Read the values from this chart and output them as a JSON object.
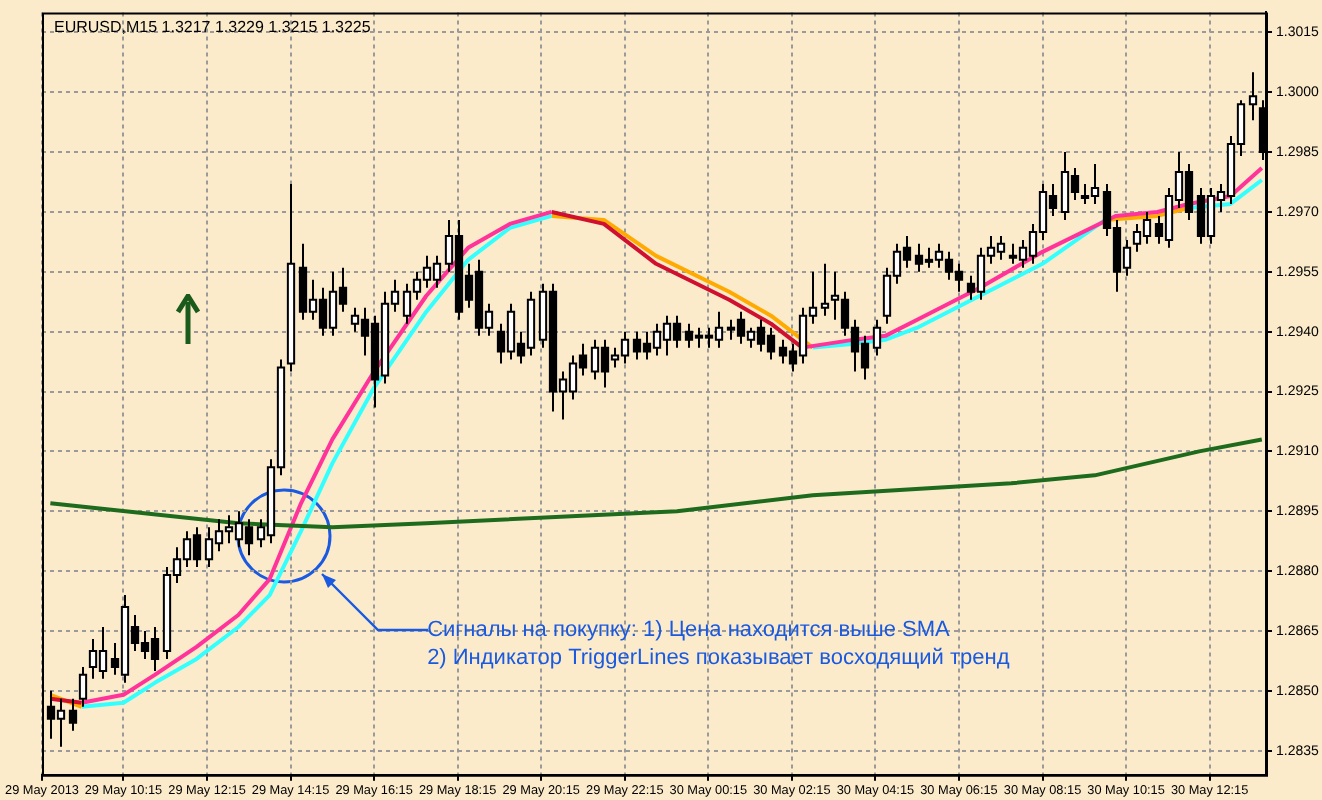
{
  "chart_data": {
    "type": "candlestick",
    "annotations": [
      "EURUSD,M15 1.3217 1.3229 1.3215 1.3225",
      "Сигналы на покупку: 1) Цена находится выше SMA\n2) Индикатор TriggerLines показывает восходящий тренд"
    ],
    "x": [
      "2013-05-29T08:30",
      "2013-05-29T08:45",
      "2013-05-29T09:00",
      "2013-05-29T09:15",
      "2013-05-29T09:30",
      "2013-05-29T09:45",
      "2013-05-29T10:00",
      "2013-05-29T10:15",
      "2013-05-29T10:30",
      "2013-05-29T10:45",
      "2013-05-29T11:00",
      "2013-05-29T11:15",
      "2013-05-29T11:30",
      "2013-05-29T11:45",
      "2013-05-29T12:00",
      "2013-05-29T12:15",
      "2013-05-29T12:30",
      "2013-05-29T12:45",
      "2013-05-29T13:00",
      "2013-05-29T13:15",
      "2013-05-29T13:30",
      "2013-05-29T13:45",
      "2013-05-29T14:00",
      "2013-05-29T14:15",
      "2013-05-29T14:30",
      "2013-05-29T14:45",
      "2013-05-29T15:00",
      "2013-05-29T15:15",
      "2013-05-29T15:30",
      "2013-05-29T15:45",
      "2013-05-29T16:00",
      "2013-05-29T16:15",
      "2013-05-29T16:30",
      "2013-05-29T16:45",
      "2013-05-29T17:00",
      "2013-05-29T17:15",
      "2013-05-29T17:30",
      "2013-05-29T17:45",
      "2013-05-29T18:00",
      "2013-05-29T18:15",
      "2013-05-29T18:30",
      "2013-05-29T18:45",
      "2013-05-29T19:00",
      "2013-05-29T19:15",
      "2013-05-29T19:30",
      "2013-05-29T19:45",
      "2013-05-29T20:00",
      "2013-05-29T20:15",
      "2013-05-29T20:30",
      "2013-05-29T20:45",
      "2013-05-29T21:00",
      "2013-05-29T21:15",
      "2013-05-29T21:30",
      "2013-05-29T21:45",
      "2013-05-29T22:00",
      "2013-05-29T22:15",
      "2013-05-29T22:30",
      "2013-05-29T22:45",
      "2013-05-29T23:00",
      "2013-05-29T23:15",
      "2013-05-29T23:30",
      "2013-05-29T23:45",
      "2013-05-30T00:00",
      "2013-05-30T00:15",
      "2013-05-30T00:30",
      "2013-05-30T00:45",
      "2013-05-30T01:00",
      "2013-05-30T01:15",
      "2013-05-30T01:30",
      "2013-05-30T01:45",
      "2013-05-30T02:00",
      "2013-05-30T02:15",
      "2013-05-30T02:30",
      "2013-05-30T02:45",
      "2013-05-30T03:00",
      "2013-05-30T03:15",
      "2013-05-30T03:30",
      "2013-05-30T03:45",
      "2013-05-30T04:00",
      "2013-05-30T04:15",
      "2013-05-30T04:30",
      "2013-05-30T04:45",
      "2013-05-30T05:00",
      "2013-05-30T05:15",
      "2013-05-30T05:30",
      "2013-05-30T05:45",
      "2013-05-30T06:00",
      "2013-05-30T06:15",
      "2013-05-30T06:30",
      "2013-05-30T06:45",
      "2013-05-30T07:00",
      "2013-05-30T07:15",
      "2013-05-30T07:30",
      "2013-05-30T07:45",
      "2013-05-30T08:00",
      "2013-05-30T08:15",
      "2013-05-30T08:30",
      "2013-05-30T08:45",
      "2013-05-30T09:00",
      "2013-05-30T09:15",
      "2013-05-30T09:30",
      "2013-05-30T09:45",
      "2013-05-30T10:00",
      "2013-05-30T10:15",
      "2013-05-30T10:30",
      "2013-05-30T10:45",
      "2013-05-30T11:00",
      "2013-05-30T11:15",
      "2013-05-30T11:30",
      "2013-05-30T11:45",
      "2013-05-30T12:00",
      "2013-05-30T12:15",
      "2013-05-30T12:30",
      "2013-05-30T12:45",
      "2013-05-30T13:00",
      "2013-05-30T13:15",
      "2013-05-30T13:30"
    ],
    "ohlc": [
      [
        1.2846,
        1.285,
        1.2838,
        1.2843
      ],
      [
        1.2843,
        1.2848,
        1.2836,
        1.2845
      ],
      [
        1.2845,
        1.2848,
        1.284,
        1.2842
      ],
      [
        1.2848,
        1.2856,
        1.2846,
        1.2854
      ],
      [
        1.2856,
        1.2863,
        1.2853,
        1.286
      ],
      [
        1.2855,
        1.2866,
        1.2853,
        1.286
      ],
      [
        1.2858,
        1.2862,
        1.2854,
        1.2856
      ],
      [
        1.2854,
        1.2874,
        1.2852,
        1.2871
      ],
      [
        1.2866,
        1.2869,
        1.286,
        1.2862
      ],
      [
        1.2862,
        1.2865,
        1.2858,
        1.286
      ],
      [
        1.2863,
        1.2866,
        1.2855,
        1.2858
      ],
      [
        1.286,
        1.2881,
        1.2858,
        1.2879
      ],
      [
        1.2879,
        1.2886,
        1.2877,
        1.2883
      ],
      [
        1.2883,
        1.289,
        1.2881,
        1.2888
      ],
      [
        1.2889,
        1.2891,
        1.2881,
        1.2883
      ],
      [
        1.2883,
        1.2891,
        1.2881,
        1.2888
      ],
      [
        1.2887,
        1.2893,
        1.2885,
        1.289
      ],
      [
        1.289,
        1.2894,
        1.2887,
        1.2891
      ],
      [
        1.2888,
        1.2895,
        1.2886,
        1.2892
      ],
      [
        1.2891,
        1.2893,
        1.2884,
        1.2887
      ],
      [
        1.2888,
        1.2893,
        1.2886,
        1.2891
      ],
      [
        1.2889,
        1.2908,
        1.2887,
        1.2906
      ],
      [
        1.2906,
        1.2933,
        1.2904,
        1.2931
      ],
      [
        1.2932,
        1.2977,
        1.293,
        1.2957
      ],
      [
        1.2956,
        1.2962,
        1.2943,
        1.2945
      ],
      [
        1.2945,
        1.2953,
        1.2943,
        1.2948
      ],
      [
        1.2948,
        1.2951,
        1.2939,
        1.2941
      ],
      [
        1.2941,
        1.2955,
        1.2939,
        1.295
      ],
      [
        1.2951,
        1.2956,
        1.2945,
        1.2947
      ],
      [
        1.2942,
        1.2946,
        1.294,
        1.2944
      ],
      [
        1.2943,
        1.2946,
        1.2934,
        1.2939
      ],
      [
        1.2942,
        1.2944,
        1.2921,
        1.2928
      ],
      [
        1.2929,
        1.295,
        1.2927,
        1.2947
      ],
      [
        1.2947,
        1.2953,
        1.2945,
        1.295
      ],
      [
        1.2944,
        1.2952,
        1.2942,
        1.295
      ],
      [
        1.295,
        1.2955,
        1.2948,
        1.2953
      ],
      [
        1.2953,
        1.2959,
        1.2951,
        1.2956
      ],
      [
        1.2953,
        1.2959,
        1.2951,
        1.2957
      ],
      [
        1.2957,
        1.2968,
        1.2955,
        1.2964
      ],
      [
        1.2964,
        1.2968,
        1.2943,
        1.2945
      ],
      [
        1.2954,
        1.2957,
        1.2946,
        1.2948
      ],
      [
        1.2955,
        1.2958,
        1.2939,
        1.2941
      ],
      [
        1.2941,
        1.2947,
        1.2939,
        1.2945
      ],
      [
        1.294,
        1.2942,
        1.2932,
        1.2935
      ],
      [
        1.2935,
        1.2947,
        1.2933,
        1.2945
      ],
      [
        1.2937,
        1.294,
        1.2932,
        1.2934
      ],
      [
        1.2936,
        1.295,
        1.2934,
        1.2948
      ],
      [
        1.2938,
        1.2952,
        1.2936,
        1.295
      ],
      [
        1.295,
        1.2952,
        1.292,
        1.2925
      ],
      [
        1.2925,
        1.293,
        1.2918,
        1.2928
      ],
      [
        1.2925,
        1.2934,
        1.2923,
        1.2932
      ],
      [
        1.2934,
        1.2937,
        1.2929,
        1.2931
      ],
      [
        1.293,
        1.2938,
        1.2928,
        1.2936
      ],
      [
        1.2936,
        1.2938,
        1.2926,
        1.293
      ],
      [
        1.2933,
        1.2936,
        1.2931,
        1.2934
      ],
      [
        1.2934,
        1.294,
        1.2932,
        1.2938
      ],
      [
        1.2938,
        1.294,
        1.2933,
        1.2935
      ],
      [
        1.2937,
        1.294,
        1.2933,
        1.2935
      ],
      [
        1.2936,
        1.2942,
        1.2934,
        1.294
      ],
      [
        1.2938,
        1.2944,
        1.2934,
        1.2942
      ],
      [
        1.2942,
        1.2944,
        1.2936,
        1.2938
      ],
      [
        1.294,
        1.2942,
        1.2936,
        1.2938
      ],
      [
        1.2939,
        1.2941,
        1.2936,
        1.2939
      ],
      [
        1.2939,
        1.2941,
        1.2936,
        1.2939
      ],
      [
        1.2938,
        1.2945,
        1.2936,
        1.2941
      ],
      [
        1.2941,
        1.2943,
        1.2938,
        1.2941
      ],
      [
        1.2943,
        1.2945,
        1.2937,
        1.2939
      ],
      [
        1.2938,
        1.2941,
        1.2936,
        1.294
      ],
      [
        1.2941,
        1.2943,
        1.2935,
        1.2937
      ],
      [
        1.2939,
        1.2941,
        1.2933,
        1.2935
      ],
      [
        1.2936,
        1.2938,
        1.2932,
        1.2934
      ],
      [
        1.2935,
        1.2937,
        1.293,
        1.2932
      ],
      [
        1.2934,
        1.2946,
        1.2932,
        1.2944
      ],
      [
        1.2944,
        1.2955,
        1.2942,
        1.2946
      ],
      [
        1.2946,
        1.2957,
        1.2944,
        1.2947
      ],
      [
        1.2948,
        1.2955,
        1.2943,
        1.2949
      ],
      [
        1.2948,
        1.295,
        1.2939,
        1.2941
      ],
      [
        1.2941,
        1.2943,
        1.293,
        1.2935
      ],
      [
        1.2937,
        1.2939,
        1.2928,
        1.2931
      ],
      [
        1.2936,
        1.2943,
        1.2934,
        1.2941
      ],
      [
        1.2944,
        1.2956,
        1.2942,
        1.2954
      ],
      [
        1.2954,
        1.2962,
        1.2952,
        1.296
      ],
      [
        1.2961,
        1.2964,
        1.2956,
        1.2958
      ],
      [
        1.2959,
        1.2962,
        1.2955,
        1.2957
      ],
      [
        1.2958,
        1.2961,
        1.2956,
        1.2958
      ],
      [
        1.2958,
        1.2962,
        1.2956,
        1.296
      ],
      [
        1.2958,
        1.296,
        1.2953,
        1.2955
      ],
      [
        1.2955,
        1.2957,
        1.295,
        1.2953
      ],
      [
        1.2952,
        1.2954,
        1.2948,
        1.295
      ],
      [
        1.295,
        1.2961,
        1.2948,
        1.2959
      ],
      [
        1.2959,
        1.2964,
        1.2957,
        1.2961
      ],
      [
        1.296,
        1.2964,
        1.2958,
        1.2962
      ],
      [
        1.2959,
        1.2962,
        1.2957,
        1.2959
      ],
      [
        1.2958,
        1.2963,
        1.2956,
        1.2961
      ],
      [
        1.2959,
        1.2967,
        1.2957,
        1.2965
      ],
      [
        1.2965,
        1.2977,
        1.2963,
        1.2975
      ],
      [
        1.2974,
        1.2977,
        1.2969,
        1.2971
      ],
      [
        1.297,
        1.2985,
        1.2968,
        1.298
      ],
      [
        1.2979,
        1.2981,
        1.2973,
        1.2975
      ],
      [
        1.2974,
        1.2977,
        1.2972,
        1.2974
      ],
      [
        1.2974,
        1.2982,
        1.2972,
        1.2976
      ],
      [
        1.2975,
        1.2977,
        1.2964,
        1.2966
      ],
      [
        1.2966,
        1.2968,
        1.295,
        1.2955
      ],
      [
        1.2956,
        1.2963,
        1.2954,
        1.2961
      ],
      [
        1.2962,
        1.2967,
        1.296,
        1.2965
      ],
      [
        1.2964,
        1.297,
        1.2962,
        1.2968
      ],
      [
        1.2967,
        1.2969,
        1.2962,
        1.2964
      ],
      [
        1.2963,
        1.2976,
        1.2961,
        1.2974
      ],
      [
        1.2973,
        1.2985,
        1.2971,
        1.298
      ],
      [
        1.298,
        1.2982,
        1.2968,
        1.297
      ],
      [
        1.2974,
        1.2976,
        1.2962,
        1.2964
      ],
      [
        1.2964,
        1.2976,
        1.2962,
        1.2974
      ],
      [
        1.2973,
        1.2977,
        1.297,
        1.2975
      ],
      [
        1.2974,
        1.2989,
        1.2972,
        1.2987
      ],
      [
        1.2987,
        1.2998,
        1.2984,
        1.2997
      ],
      [
        1.2997,
        1.3005,
        1.2993,
        1.2999
      ],
      [
        1.2996,
        1.2998,
        1.2983,
        1.2985
      ]
    ],
    "series": [
      {
        "type": "line",
        "color": "#1e6b1e",
        "x": [
          "2013-05-29T08:30",
          "2013-05-29T13:00",
          "2013-05-29T15:15",
          "2013-05-29T17:30",
          "2013-05-29T23:30",
          "2013-05-30T02:45",
          "2013-05-30T07:30",
          "2013-05-30T09:30",
          "2013-05-30T12:00",
          "2013-05-30T13:30"
        ],
        "values": [
          1.2897,
          1.2892,
          1.2891,
          1.2892,
          1.2895,
          1.2899,
          1.2902,
          1.2904,
          1.291,
          1.2913
        ]
      },
      {
        "type": "line",
        "color": "#d01030",
        "x": [
          "2013-05-29T08:30",
          "2013-05-29T09:15"
        ],
        "values": [
          1.2848,
          1.2847
        ]
      },
      {
        "type": "line",
        "color": "#ff3399",
        "x": [
          "2013-05-29T09:15",
          "2013-05-29T10:15",
          "2013-05-29T11:00",
          "2013-05-29T12:00",
          "2013-05-29T13:00",
          "2013-05-29T13:45",
          "2013-05-29T14:30",
          "2013-05-29T15:15",
          "2013-05-29T16:15",
          "2013-05-29T17:30",
          "2013-05-29T18:30",
          "2013-05-29T19:30",
          "2013-05-29T20:30"
        ],
        "values": [
          1.2847,
          1.2849,
          1.2854,
          1.2861,
          1.2869,
          1.2878,
          1.2897,
          1.2913,
          1.293,
          1.2949,
          1.2961,
          1.2967,
          1.297
        ]
      },
      {
        "type": "line",
        "color": "#d01030",
        "x": [
          "2013-05-29T20:30",
          "2013-05-29T21:45",
          "2013-05-29T23:00",
          "2013-05-30T00:45",
          "2013-05-30T01:45",
          "2013-05-30T02:30"
        ],
        "values": [
          1.297,
          1.2967,
          1.2957,
          1.2948,
          1.2942,
          1.2936
        ]
      },
      {
        "type": "line",
        "color": "#ff3399",
        "x": [
          "2013-05-30T02:30",
          "2013-05-30T03:45",
          "2013-05-30T04:30",
          "2013-05-30T05:15",
          "2013-05-30T06:45",
          "2013-05-30T08:15",
          "2013-05-30T10:00",
          "2013-05-30T11:00",
          "2013-05-30T11:45",
          "2013-05-30T12:45",
          "2013-05-30T13:30"
        ],
        "values": [
          1.2936,
          1.2938,
          1.2939,
          1.2943,
          1.2951,
          1.296,
          1.2969,
          1.297,
          1.2972,
          1.2974,
          1.2981
        ]
      },
      {
        "type": "line",
        "color": "#ffaa00",
        "x": [
          "2013-05-29T08:30",
          "2013-05-29T09:15"
        ],
        "values": [
          1.2849,
          1.2846
        ]
      },
      {
        "type": "line",
        "color": "#33ffff",
        "x": [
          "2013-05-29T09:15",
          "2013-05-29T10:15",
          "2013-05-29T11:00",
          "2013-05-29T12:00",
          "2013-05-29T13:00",
          "2013-05-29T13:45",
          "2013-05-29T14:30",
          "2013-05-29T15:15",
          "2013-05-29T16:15",
          "2013-05-29T17:30",
          "2013-05-29T18:30",
          "2013-05-29T19:30",
          "2013-05-29T20:30"
        ],
        "values": [
          1.2846,
          1.2847,
          1.2852,
          1.2858,
          1.2866,
          1.2874,
          1.289,
          1.2907,
          1.2926,
          1.2945,
          1.2958,
          1.2966,
          1.2969
        ]
      },
      {
        "type": "line",
        "color": "#ffaa00",
        "x": [
          "2013-05-29T20:30",
          "2013-05-29T21:45",
          "2013-05-29T23:00",
          "2013-05-30T00:45",
          "2013-05-30T01:45",
          "2013-05-30T02:45"
        ],
        "values": [
          1.2969,
          1.2968,
          1.2959,
          1.295,
          1.2944,
          1.2936
        ]
      },
      {
        "type": "line",
        "color": "#33ffff",
        "x": [
          "2013-05-30T02:45",
          "2013-05-30T03:45",
          "2013-05-30T04:30",
          "2013-05-30T05:15",
          "2013-05-30T06:45",
          "2013-05-30T08:15",
          "2013-05-30T09:45"
        ],
        "values": [
          1.2936,
          1.2937,
          1.2938,
          1.2941,
          1.2949,
          1.2957,
          1.2968
        ]
      },
      {
        "type": "line",
        "color": "#ffaa00",
        "x": [
          "2013-05-30T09:45",
          "2013-05-30T11:00",
          "2013-05-30T11:45"
        ],
        "values": [
          1.2968,
          1.2969,
          1.2971
        ]
      },
      {
        "type": "line",
        "color": "#33ffff",
        "x": [
          "2013-05-30T11:45",
          "2013-05-30T12:45",
          "2013-05-30T13:30"
        ],
        "values": [
          1.2971,
          1.2972,
          1.2978
        ]
      }
    ],
    "xlim": [
      "2013-05-29T08:18",
      "2013-05-30T13:36"
    ],
    "xticks": [
      {
        "value": "2013-05-29T08:18",
        "label": "29 May 2013"
      },
      {
        "value": "2013-05-29T10:15",
        "label": "29 May 10:15"
      },
      {
        "value": "2013-05-29T12:15",
        "label": "29 May 12:15"
      },
      {
        "value": "2013-05-29T14:15",
        "label": "29 May 14:15"
      },
      {
        "value": "2013-05-29T16:15",
        "label": "29 May 16:15"
      },
      {
        "value": "2013-05-29T18:15",
        "label": "29 May 18:15"
      },
      {
        "value": "2013-05-29T20:15",
        "label": "29 May 20:15"
      },
      {
        "value": "2013-05-29T22:15",
        "label": "29 May 22:15"
      },
      {
        "value": "2013-05-30T00:15",
        "label": "30 May 00:15"
      },
      {
        "value": "2013-05-30T02:15",
        "label": "30 May 02:15"
      },
      {
        "value": "2013-05-30T04:15",
        "label": "30 May 04:15"
      },
      {
        "value": "2013-05-30T06:15",
        "label": "30 May 06:15"
      },
      {
        "value": "2013-05-30T08:15",
        "label": "30 May 08:15"
      },
      {
        "value": "2013-05-30T10:15",
        "label": "30 May 10:15"
      },
      {
        "value": "2013-05-30T12:15",
        "label": "30 May 12:15"
      }
    ],
    "ylim": [
      1.2829,
      1.302
    ],
    "yticks": [
      1.2835,
      {
        "value": 1.285,
        "label": "1.2850"
      },
      1.2865,
      {
        "value": 1.288,
        "label": "1.2880"
      },
      1.2895,
      {
        "value": 1.291,
        "label": "1.2910"
      },
      1.2925,
      {
        "value": 1.294,
        "label": "1.2940"
      },
      1.2955,
      {
        "value": 1.297,
        "label": "1.2970"
      },
      1.2985,
      {
        "value": 1.3,
        "label": "1.3000"
      },
      1.3015
    ],
    "grid": true,
    "legend": false
  }
}
